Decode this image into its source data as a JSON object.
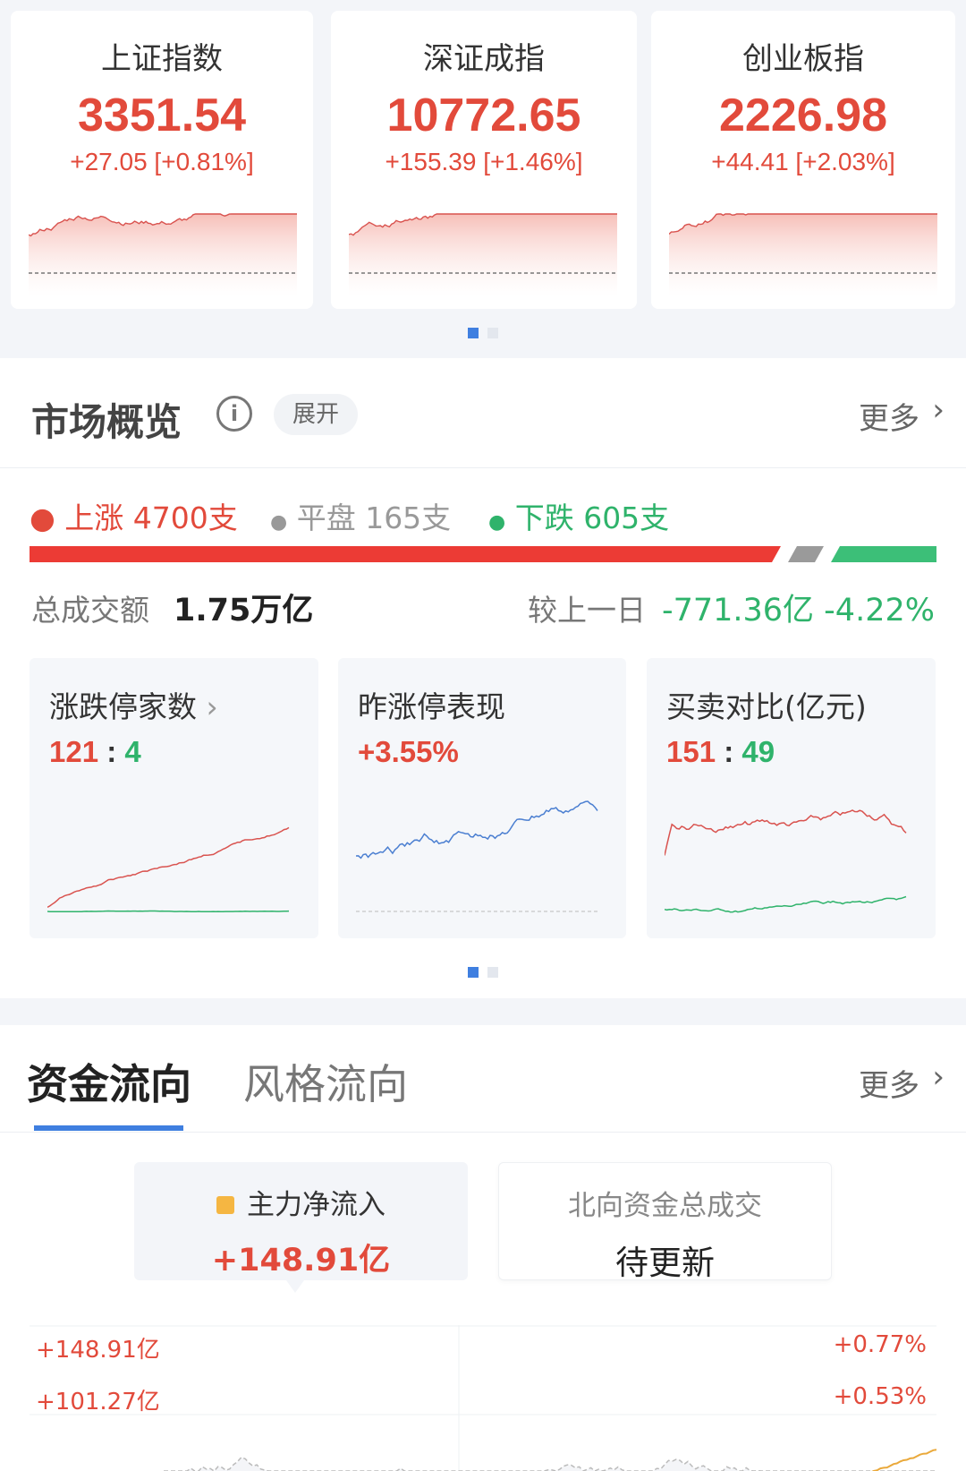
{
  "indices": [
    {
      "name": "上证指数",
      "price": "3351.54",
      "change": "+27.05 [+0.81%]"
    },
    {
      "name": "深证成指",
      "price": "10772.65",
      "change": "+155.39 [+1.46%]"
    },
    {
      "name": "创业板指",
      "price": "2226.98",
      "change": "+44.41 [+2.03%]"
    }
  ],
  "overview": {
    "title": "市场概览",
    "info_icon": "info-icon",
    "expand": "展开",
    "more": "更多",
    "up": "上涨 4700支",
    "flat": "平盘 165支",
    "down": "下跌 605支",
    "ratio": {
      "up": 4700,
      "flat": 165,
      "down": 605
    },
    "turnover_label": "总成交额",
    "turnover": "1.75万亿",
    "compare_label": "较上一日",
    "compare": "-771.36亿 -4.22%",
    "cards": [
      {
        "title": "涨跌停家数",
        "v1": "121",
        "sep": ":",
        "v2": "4"
      },
      {
        "title": "昨涨停表现",
        "v1": "+3.55%"
      },
      {
        "title": "买卖对比(亿元)",
        "v1": "151",
        "sep": ":",
        "v2": "49"
      }
    ]
  },
  "flow": {
    "tabs": [
      "资金流向",
      "风格流向"
    ],
    "more": "更多",
    "main_label": "主力净流入",
    "main_value": "+148.91亿",
    "north_label": "北向资金总成交",
    "north_value": "待更新",
    "y_left": [
      "+148.91亿",
      "+101.27亿"
    ],
    "y_right": [
      "+0.77%",
      "+0.53%"
    ]
  },
  "colors": {
    "up": "#e24a3b",
    "down": "#2fb36b",
    "accent": "#3f7fe0",
    "flat": "#999999"
  }
}
